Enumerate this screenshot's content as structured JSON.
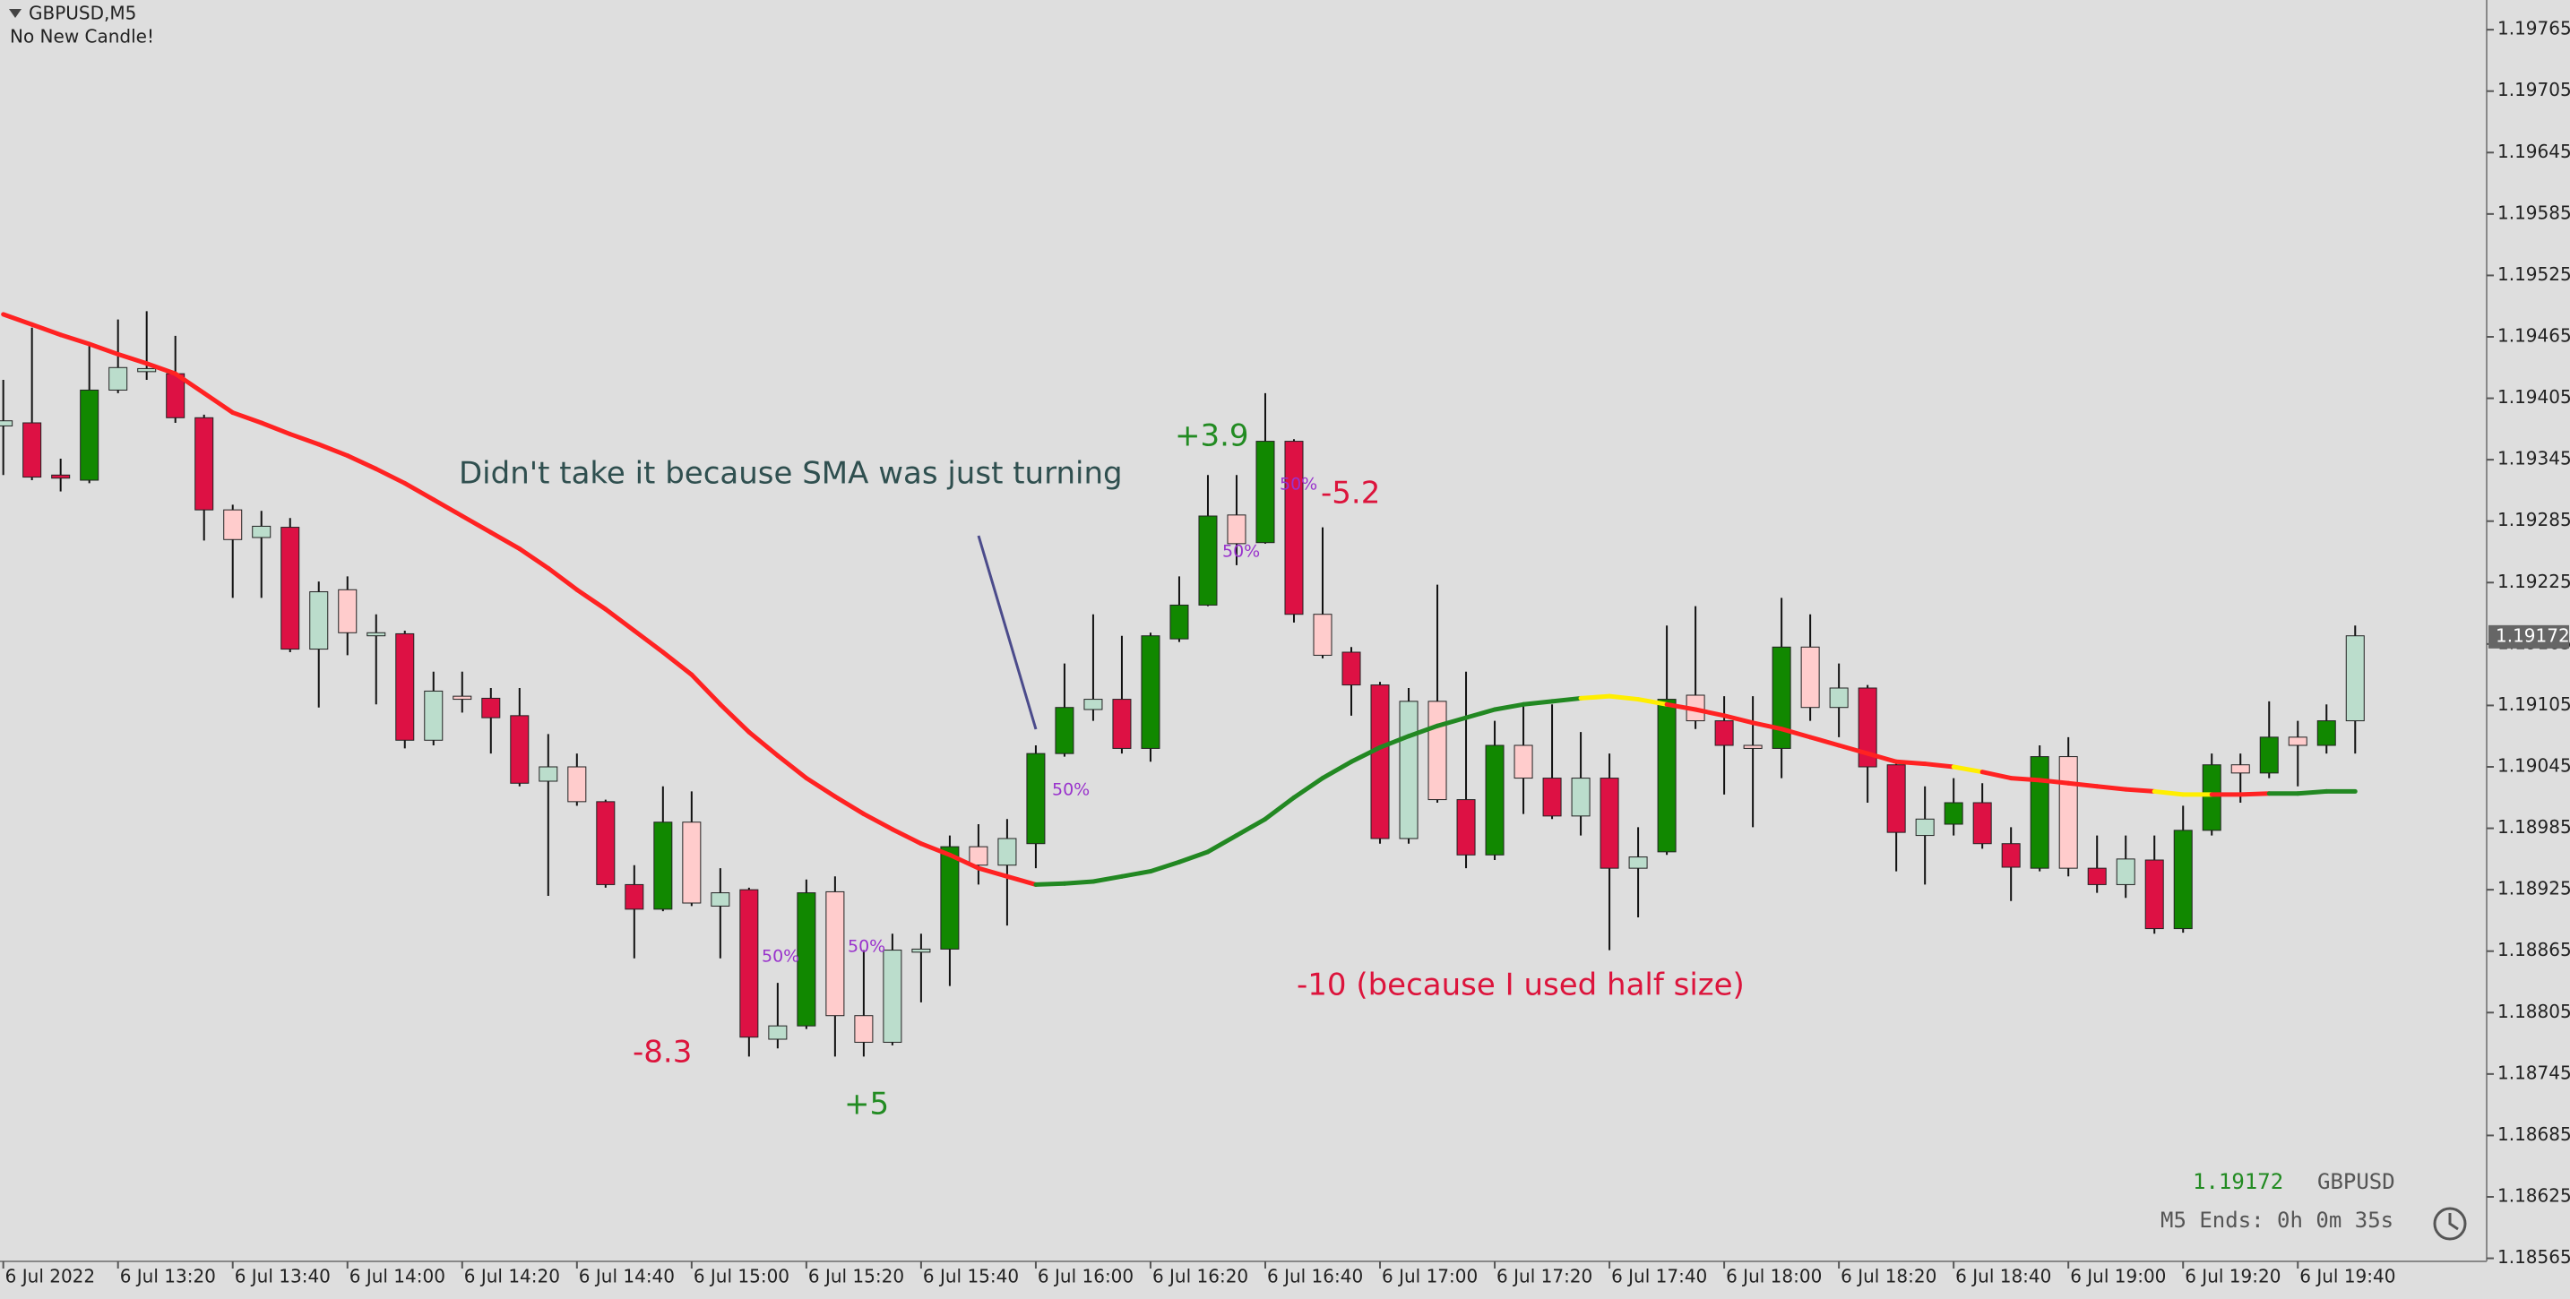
{
  "chart_data": {
    "type": "candlestick",
    "title": "GBPUSD,M5",
    "subtitle": "No New Candle!",
    "categories": [
      "6 Jul 2022",
      null,
      null,
      null,
      "6 Jul 13:20",
      null,
      null,
      null,
      "6 Jul 13:40",
      null,
      null,
      null,
      "6 Jul 14:00",
      null,
      null,
      null,
      "6 Jul 14:20",
      null,
      null,
      null,
      "6 Jul 14:40",
      null,
      null,
      null,
      "6 Jul 15:00",
      null,
      null,
      null,
      "6 Jul 15:20",
      null,
      null,
      null,
      "6 Jul 15:40",
      null,
      null,
      null,
      "6 Jul 16:00",
      null,
      null,
      null,
      "6 Jul 16:20",
      null,
      null,
      null,
      "6 Jul 16:40",
      null,
      null,
      null,
      "6 Jul 17:00",
      null,
      null,
      null,
      "6 Jul 17:20",
      null,
      null,
      null,
      "6 Jul 17:40",
      null,
      null,
      null,
      "6 Jul 18:00",
      null,
      null,
      null,
      "6 Jul 18:20",
      null,
      null,
      null,
      "6 Jul 18:40",
      null,
      null,
      null,
      "6 Jul 19:00",
      null,
      null,
      null,
      "6 Jul 19:20",
      null,
      null,
      null,
      "6 Jul 19:40",
      null,
      null
    ],
    "open": [
      1.19378,
      1.19381,
      1.1933,
      1.19325,
      1.19413,
      1.19431,
      1.19429,
      1.19386,
      1.19296,
      1.19269,
      1.19279,
      1.1916,
      1.19218,
      1.19176,
      1.19175,
      1.19071,
      1.19114,
      1.19112,
      1.19095,
      1.19031,
      1.19045,
      1.19011,
      1.1893,
      1.18906,
      1.18991,
      1.18909,
      1.18925,
      1.18779,
      1.18792,
      1.18923,
      1.18802,
      1.18776,
      1.18864,
      1.18867,
      1.18967,
      1.18949,
      1.1897,
      1.19058,
      1.19101,
      1.19111,
      1.19063,
      1.1917,
      1.19203,
      1.19291,
      1.19264,
      1.19363,
      1.19194,
      1.19157,
      1.19125,
      1.18975,
      1.19109,
      1.19013,
      1.18959,
      1.19066,
      1.19034,
      1.18997,
      1.19034,
      1.18946,
      1.18962,
      1.19115,
      1.1909,
      1.19066,
      1.19063,
      1.19162,
      1.19103,
      1.19122,
      1.19047,
      1.18978,
      1.18989,
      1.1901,
      1.1897,
      1.18946,
      1.19055,
      1.18946,
      1.1893,
      1.18954,
      1.18887,
      1.18983,
      1.19047,
      1.19039,
      1.19074,
      1.19066,
      1.1909
    ],
    "high": [
      1.19423,
      1.19474,
      1.19346,
      1.19458,
      1.19482,
      1.1949,
      1.19466,
      1.19389,
      1.19301,
      1.19295,
      1.19288,
      1.19226,
      1.19231,
      1.19194,
      1.19178,
      1.19138,
      1.19138,
      1.19122,
      1.19122,
      1.19077,
      1.19058,
      1.19013,
      1.18949,
      1.19026,
      1.19021,
      1.18946,
      1.18927,
      1.18834,
      1.18935,
      1.18938,
      1.18866,
      1.18882,
      1.18882,
      1.18978,
      1.18989,
      1.18994,
      1.19066,
      1.19146,
      1.19194,
      1.19173,
      1.19176,
      1.19231,
      1.1933,
      1.1933,
      1.1941,
      1.19365,
      1.19279,
      1.19162,
      1.19128,
      1.19122,
      1.19223,
      1.19138,
      1.1909,
      1.19106,
      1.19106,
      1.19079,
      1.19058,
      1.18986,
      1.19183,
      1.19202,
      1.19114,
      1.19114,
      1.1921,
      1.19194,
      1.19146,
      1.19125,
      1.1905,
      1.19026,
      1.19034,
      1.19029,
      1.18986,
      1.19066,
      1.19074,
      1.18978,
      1.18978,
      1.18978,
      1.19007,
      1.19058,
      1.19058,
      1.19109,
      1.1909,
      1.19106,
      1.19183
    ],
    "low": [
      1.1933,
      1.19325,
      1.19314,
      1.19322,
      1.1941,
      1.19423,
      1.19381,
      1.19266,
      1.1921,
      1.1921,
      1.19157,
      1.19103,
      1.19154,
      1.19106,
      1.19063,
      1.19066,
      1.19098,
      1.19058,
      1.19026,
      1.18919,
      1.19007,
      1.18927,
      1.18858,
      1.18904,
      1.18909,
      1.18858,
      1.18762,
      1.1877,
      1.18789,
      1.18762,
      1.18762,
      1.18773,
      1.18815,
      1.18831,
      1.1893,
      1.1889,
      1.18946,
      1.19055,
      1.1909,
      1.19058,
      1.1905,
      1.19167,
      1.19202,
      1.19242,
      1.19263,
      1.19186,
      1.19151,
      1.19095,
      1.1897,
      1.1897,
      1.1901,
      1.18946,
      1.18954,
      1.18999,
      1.18994,
      1.18978,
      1.18866,
      1.18898,
      1.18959,
      1.19082,
      1.19018,
      1.18986,
      1.19034,
      1.1909,
      1.19074,
      1.1901,
      1.18943,
      1.1893,
      1.18978,
      1.18965,
      1.18914,
      1.18943,
      1.18938,
      1.18922,
      1.18917,
      1.18882,
      1.18883,
      1.18978,
      1.1901,
      1.19034,
      1.19026,
      1.19058,
      1.19058
    ],
    "close": [
      1.19383,
      1.19328,
      1.19327,
      1.19413,
      1.19435,
      1.19434,
      1.19386,
      1.19296,
      1.19267,
      1.1928,
      1.1916,
      1.19216,
      1.19176,
      1.19173,
      1.19071,
      1.19119,
      1.19111,
      1.19093,
      1.19029,
      1.19045,
      1.19011,
      1.1893,
      1.18906,
      1.18991,
      1.18912,
      1.18922,
      1.18781,
      1.18792,
      1.18922,
      1.18802,
      1.18776,
      1.18866,
      1.18867,
      1.18967,
      1.18949,
      1.18975,
      1.19058,
      1.19103,
      1.19111,
      1.19063,
      1.19173,
      1.19203,
      1.1929,
      1.19263,
      1.19363,
      1.19194,
      1.19154,
      1.19125,
      1.18975,
      1.19109,
      1.19013,
      1.18959,
      1.19066,
      1.19034,
      1.18997,
      1.19034,
      1.18946,
      1.18957,
      1.19111,
      1.1909,
      1.19066,
      1.19063,
      1.19162,
      1.19103,
      1.19122,
      1.19045,
      1.18981,
      1.18994,
      1.1901,
      1.1897,
      1.18947,
      1.19055,
      1.18946,
      1.1893,
      1.18955,
      1.18887,
      1.18983,
      1.19047,
      1.19039,
      1.19074,
      1.19066,
      1.1909,
      1.19173
    ],
    "colors": [
      "#bdc",
      "#d14",
      "#d14",
      "#180",
      "#bdc",
      "#bdc",
      "#d14",
      "#d14",
      "#fcc",
      "#bdc",
      "#d14",
      "#bdc",
      "#fcc",
      "#bdc",
      "#d14",
      "#bdc",
      "#fcc",
      "#d14",
      "#d14",
      "#bdc",
      "#fcc",
      "#d14",
      "#d14",
      "#180",
      "#fcc",
      "#bdc",
      "#d14",
      "#bdc",
      "#180",
      "#fcc",
      "#fcc",
      "#bdc",
      "#bdc",
      "#180",
      "#fcc",
      "#bdc",
      "#180",
      "#180",
      "#bdc",
      "#d14",
      "#180",
      "#180",
      "#180",
      "#fcc",
      "#180",
      "#d14",
      "#fcc",
      "#d14",
      "#d14",
      "#bdc",
      "#fcc",
      "#d14",
      "#180",
      "#fcc",
      "#d14",
      "#bdc",
      "#d14",
      "#bdc",
      "#180",
      "#fcc",
      "#d14",
      "#fcc",
      "#180",
      "#fcc",
      "#bdc",
      "#d14",
      "#d14",
      "#bdc",
      "#180",
      "#d14",
      "#d14",
      "#180",
      "#fcc",
      "#d14",
      "#bdc",
      "#d14",
      "#180",
      "#180",
      "#fcc",
      "#180",
      "#fcc",
      "#180",
      "#bdc"
    ],
    "sma": {
      "values": [
        1.19487,
        1.19477,
        1.19467,
        1.19458,
        1.19448,
        1.19439,
        1.19429,
        1.1941,
        1.19391,
        1.19381,
        1.1937,
        1.1936,
        1.19349,
        1.19336,
        1.19322,
        1.19306,
        1.1929,
        1.19274,
        1.19258,
        1.19239,
        1.19218,
        1.19199,
        1.19178,
        1.19157,
        1.19135,
        1.19106,
        1.19079,
        1.19056,
        1.19034,
        1.19016,
        1.18999,
        1.18984,
        1.1897,
        1.18959,
        1.18946,
        1.18938,
        1.1893,
        1.18931,
        1.18933,
        1.18938,
        1.18943,
        1.18952,
        1.18962,
        1.18978,
        1.18994,
        1.19015,
        1.19034,
        1.1905,
        1.19064,
        1.19075,
        1.19085,
        1.19093,
        1.19101,
        1.19106,
        1.19109,
        1.19112,
        1.19114,
        1.19111,
        1.19106,
        1.19101,
        1.19095,
        1.19088,
        1.19082,
        1.19074,
        1.19066,
        1.19058,
        1.1905,
        1.19048,
        1.19045,
        1.1904,
        1.19034,
        1.19032,
        1.19029,
        1.19026,
        1.19023,
        1.19021,
        1.19018,
        1.19018,
        1.19018,
        1.19019,
        1.19019,
        1.19021,
        1.19021
      ],
      "colors": [
        "#f22",
        "#f22",
        "#f22",
        "#f22",
        "#f22",
        "#f22",
        "#f22",
        "#f22",
        "#f22",
        "#f22",
        "#f22",
        "#f22",
        "#f22",
        "#f22",
        "#f22",
        "#f22",
        "#f22",
        "#f22",
        "#f22",
        "#f22",
        "#f22",
        "#f22",
        "#f22",
        "#f22",
        "#f22",
        "#f22",
        "#f22",
        "#f22",
        "#f22",
        "#f22",
        "#f22",
        "#f22",
        "#f22",
        "#f22",
        "#f22",
        "#f22",
        "#282",
        "#282",
        "#282",
        "#282",
        "#282",
        "#282",
        "#282",
        "#282",
        "#282",
        "#282",
        "#282",
        "#282",
        "#282",
        "#282",
        "#282",
        "#282",
        "#282",
        "#282",
        "#282",
        "#fe0",
        "#fe0",
        "#fe0",
        "#f22",
        "#f22",
        "#f22",
        "#f22",
        "#f22",
        "#f22",
        "#f22",
        "#f22",
        "#f22",
        "#f22",
        "#fe0",
        "#f22",
        "#f22",
        "#f22",
        "#f22",
        "#f22",
        "#f22",
        "#fe0",
        "#fe0",
        "#f22",
        "#f22",
        "#282",
        "#282",
        "#282",
        "#282"
      ]
    },
    "ylim": [
      1.18562,
      1.19794
    ],
    "yticks": [
      1.19765,
      1.19705,
      1.19645,
      1.19585,
      1.19525,
      1.19465,
      1.19405,
      1.19345,
      1.19285,
      1.19225,
      1.19165,
      1.19105,
      1.19045,
      1.18985,
      1.18925,
      1.18865,
      1.18805,
      1.18745,
      1.18685,
      1.18625,
      1.18565
    ],
    "last_price": 1.19172,
    "symbol": "GBPUSD",
    "countdown": "M5 Ends: 0h 0m 35s",
    "annotations": [
      {
        "text": "Didn't take it because SMA was just turning",
        "color": "#2f4f4f"
      },
      {
        "text": "+3.9",
        "color": "#228b22"
      },
      {
        "text": "-5.2",
        "color": "#dc143c"
      },
      {
        "text": "-10 (because I used half size)",
        "color": "#dc143c"
      },
      {
        "text": "-8.3",
        "color": "#dc143c"
      },
      {
        "text": "+5",
        "color": "#228b22"
      }
    ],
    "trade_labels": [
      "50%",
      "50%",
      "50%",
      "50%",
      "50%"
    ]
  }
}
